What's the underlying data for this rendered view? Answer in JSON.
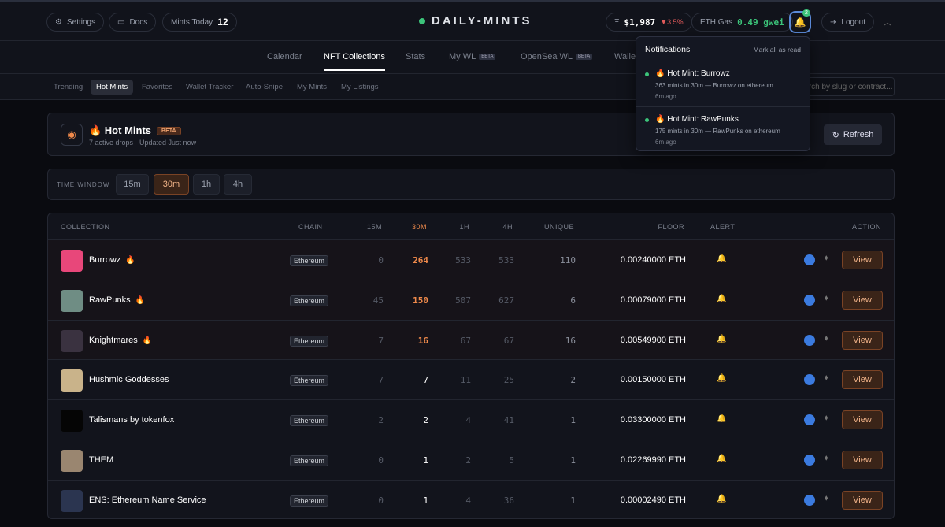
{
  "header": {
    "settings": "Settings",
    "docs": "Docs",
    "mints_today_label": "Mints Today",
    "mints_today_value": "12",
    "brand": "DAILY-MINTS",
    "eth_price": "$1,987",
    "eth_change": "▼3.5%",
    "gas_label": "ETH Gas",
    "gas_value": "0.49 gwei",
    "notification_count": "2",
    "logout": "Logout"
  },
  "nav": {
    "tabs": [
      {
        "label": "Calendar"
      },
      {
        "label": "NFT Collections",
        "active": true
      },
      {
        "label": "Stats"
      },
      {
        "label": "My WL",
        "badge": "BETA"
      },
      {
        "label": "OpenSea WL",
        "badge": "BETA"
      },
      {
        "label": "Wallet"
      }
    ]
  },
  "subnav": {
    "tabs": [
      {
        "label": "Trending"
      },
      {
        "label": "Hot Mints",
        "active": true
      },
      {
        "label": "Favorites"
      },
      {
        "label": "Wallet Tracker"
      },
      {
        "label": "Auto-Snipe"
      },
      {
        "label": "My Mints"
      },
      {
        "label": "My Listings"
      }
    ],
    "search_placeholder": "Search by slug or contract..."
  },
  "panel": {
    "title": "🔥 Hot Mints",
    "badge": "BETA",
    "subtitle": "7 active drops · Updated Just now",
    "refresh": "Refresh"
  },
  "time_window": {
    "label": "TIME WINDOW",
    "options": [
      {
        "label": "15m"
      },
      {
        "label": "30m",
        "active": true
      },
      {
        "label": "1h"
      },
      {
        "label": "4h"
      }
    ]
  },
  "table": {
    "headers": [
      "COLLECTION",
      "CHAIN",
      "15M",
      "30M",
      "1H",
      "4H",
      "UNIQUE",
      "FLOOR",
      "ALERT",
      "ACTION"
    ],
    "rows": [
      {
        "name": "Burrowz",
        "hot": true,
        "chain": "Ethereum",
        "m15": "0",
        "m30": "264",
        "h1": "533",
        "h4": "533",
        "unique": "110",
        "floor": "0.00240000 ETH",
        "action": "View",
        "avatar": "#e8477a"
      },
      {
        "name": "RawPunks",
        "hot": true,
        "chain": "Ethereum",
        "m15": "45",
        "m30": "150",
        "h1": "507",
        "h4": "627",
        "unique": "6",
        "floor": "0.00079000 ETH",
        "action": "View",
        "avatar": "#6f8d84"
      },
      {
        "name": "Knightmares",
        "hot": true,
        "chain": "Ethereum",
        "m15": "7",
        "m30": "16",
        "h1": "67",
        "h4": "67",
        "unique": "16",
        "floor": "0.00549900 ETH",
        "action": "View",
        "avatar": "#3a3240"
      },
      {
        "name": "Hushmic Goddesses",
        "hot": false,
        "chain": "Ethereum",
        "m15": "7",
        "m30": "7",
        "h1": "11",
        "h4": "25",
        "unique": "2",
        "floor": "0.00150000 ETH",
        "action": "View",
        "avatar": "#c9b38a"
      },
      {
        "name": "Talismans by tokenfox",
        "hot": false,
        "chain": "Ethereum",
        "m15": "2",
        "m30": "2",
        "h1": "4",
        "h4": "41",
        "unique": "1",
        "floor": "0.03300000 ETH",
        "action": "View",
        "avatar": "#050505"
      },
      {
        "name": "THEM",
        "hot": false,
        "chain": "Ethereum",
        "m15": "0",
        "m30": "1",
        "h1": "2",
        "h4": "5",
        "unique": "1",
        "floor": "0.02269990 ETH",
        "action": "View",
        "avatar": "#9a8670"
      },
      {
        "name": "ENS: Ethereum Name Service",
        "hot": false,
        "chain": "Ethereum",
        "m15": "0",
        "m30": "1",
        "h1": "4",
        "h4": "36",
        "unique": "1",
        "floor": "0.00002490 ETH",
        "action": "View",
        "avatar": "#2b3550"
      }
    ]
  },
  "notifications": {
    "title": "Notifications",
    "mark_all": "Mark all as read",
    "items": [
      {
        "title": "🔥 Hot Mint: Burrowz",
        "body": "363 mints in 30m — Burrowz on ethereum",
        "time": "6m ago"
      },
      {
        "title": "🔥 Hot Mint: RawPunks",
        "body": "175 mints in 30m — RawPunks on ethereum",
        "time": "6m ago"
      }
    ]
  }
}
